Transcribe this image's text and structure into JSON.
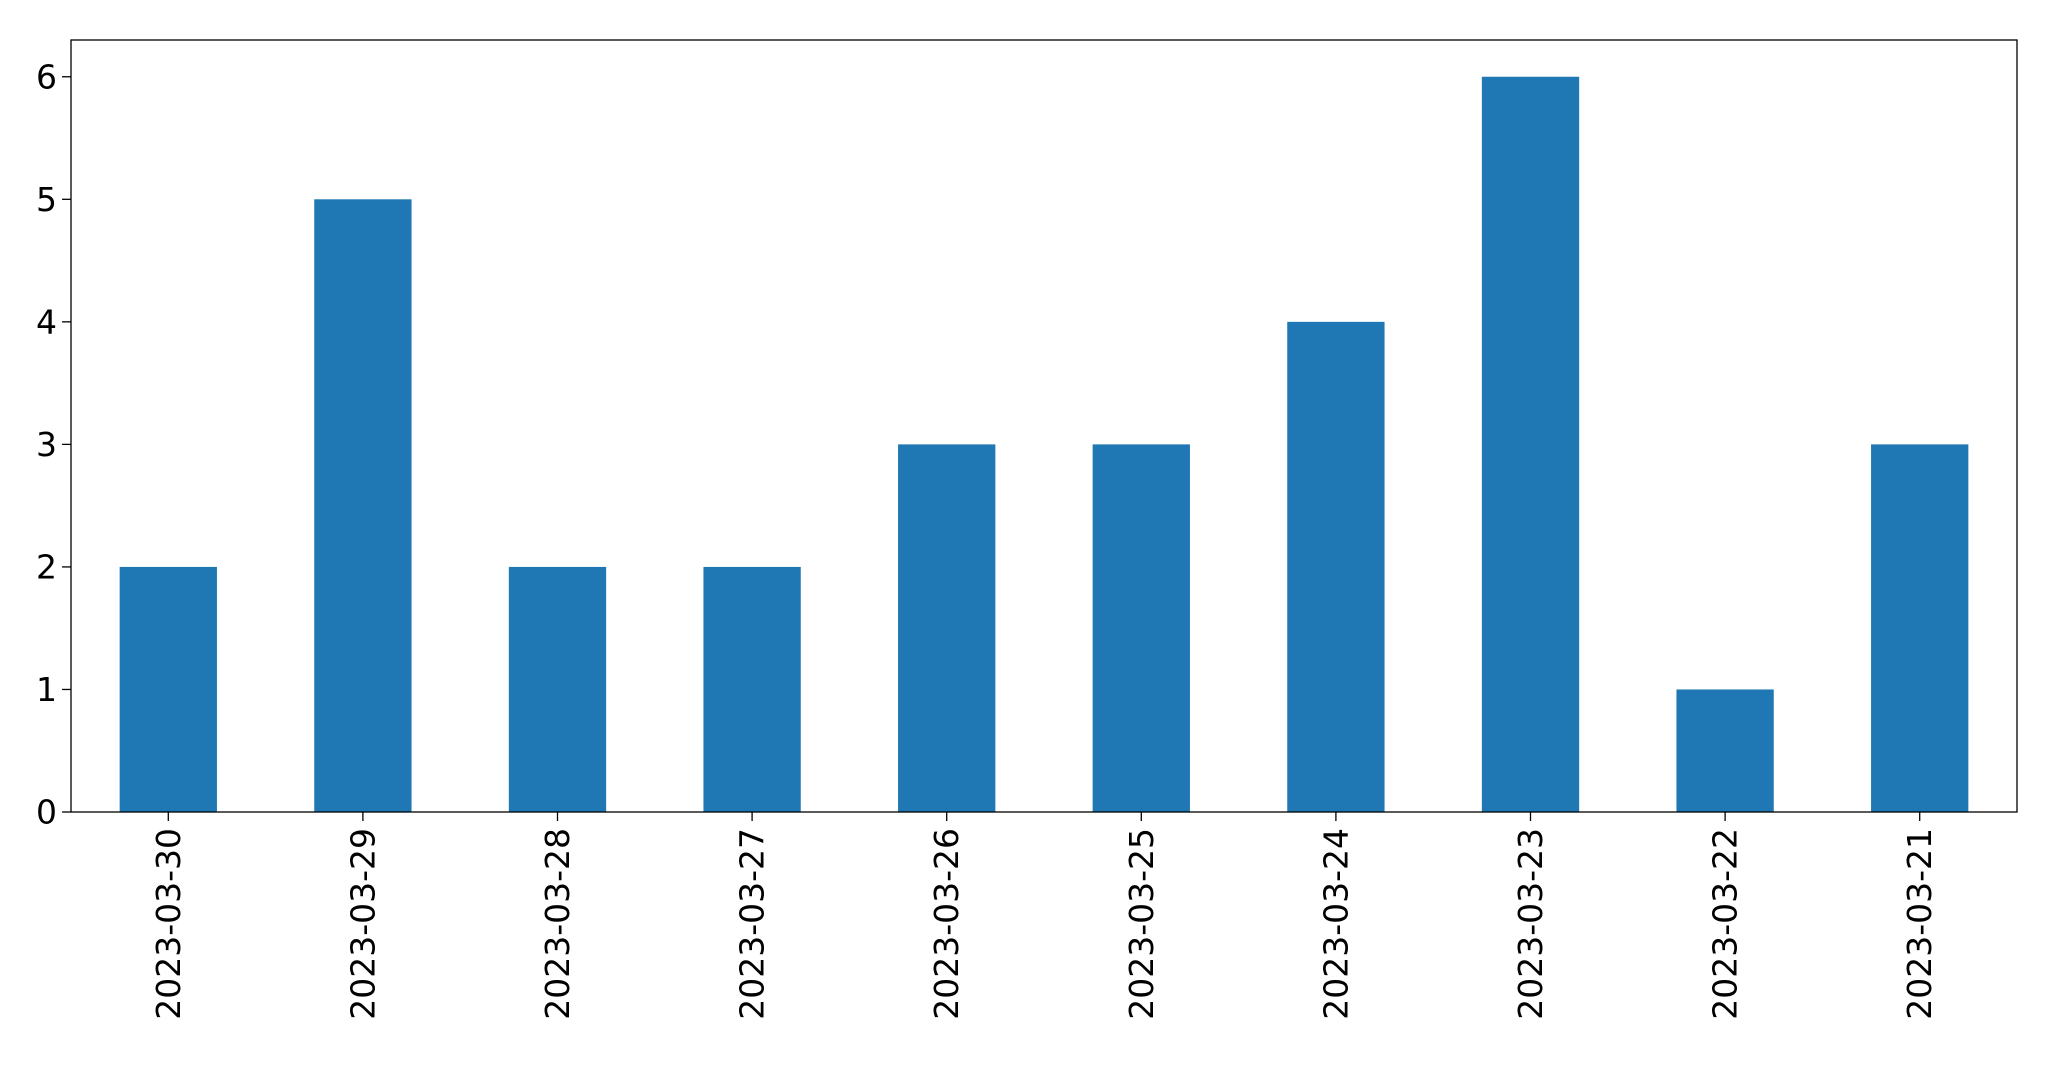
{
  "chart_data": {
    "type": "bar",
    "title": "",
    "xlabel": "",
    "ylabel": "",
    "categories": [
      "2023-03-30",
      "2023-03-29",
      "2023-03-28",
      "2023-03-27",
      "2023-03-26",
      "2023-03-25",
      "2023-03-24",
      "2023-03-23",
      "2023-03-22",
      "2023-03-21"
    ],
    "values": [
      2,
      5,
      2,
      2,
      3,
      3,
      4,
      6,
      1,
      3
    ],
    "ylim": [
      0,
      6.3
    ],
    "yticks": [
      "0",
      "1",
      "2",
      "3",
      "4",
      "5",
      "6"
    ],
    "bar_color": "#1f77b4",
    "grid": false,
    "legend": "none"
  }
}
